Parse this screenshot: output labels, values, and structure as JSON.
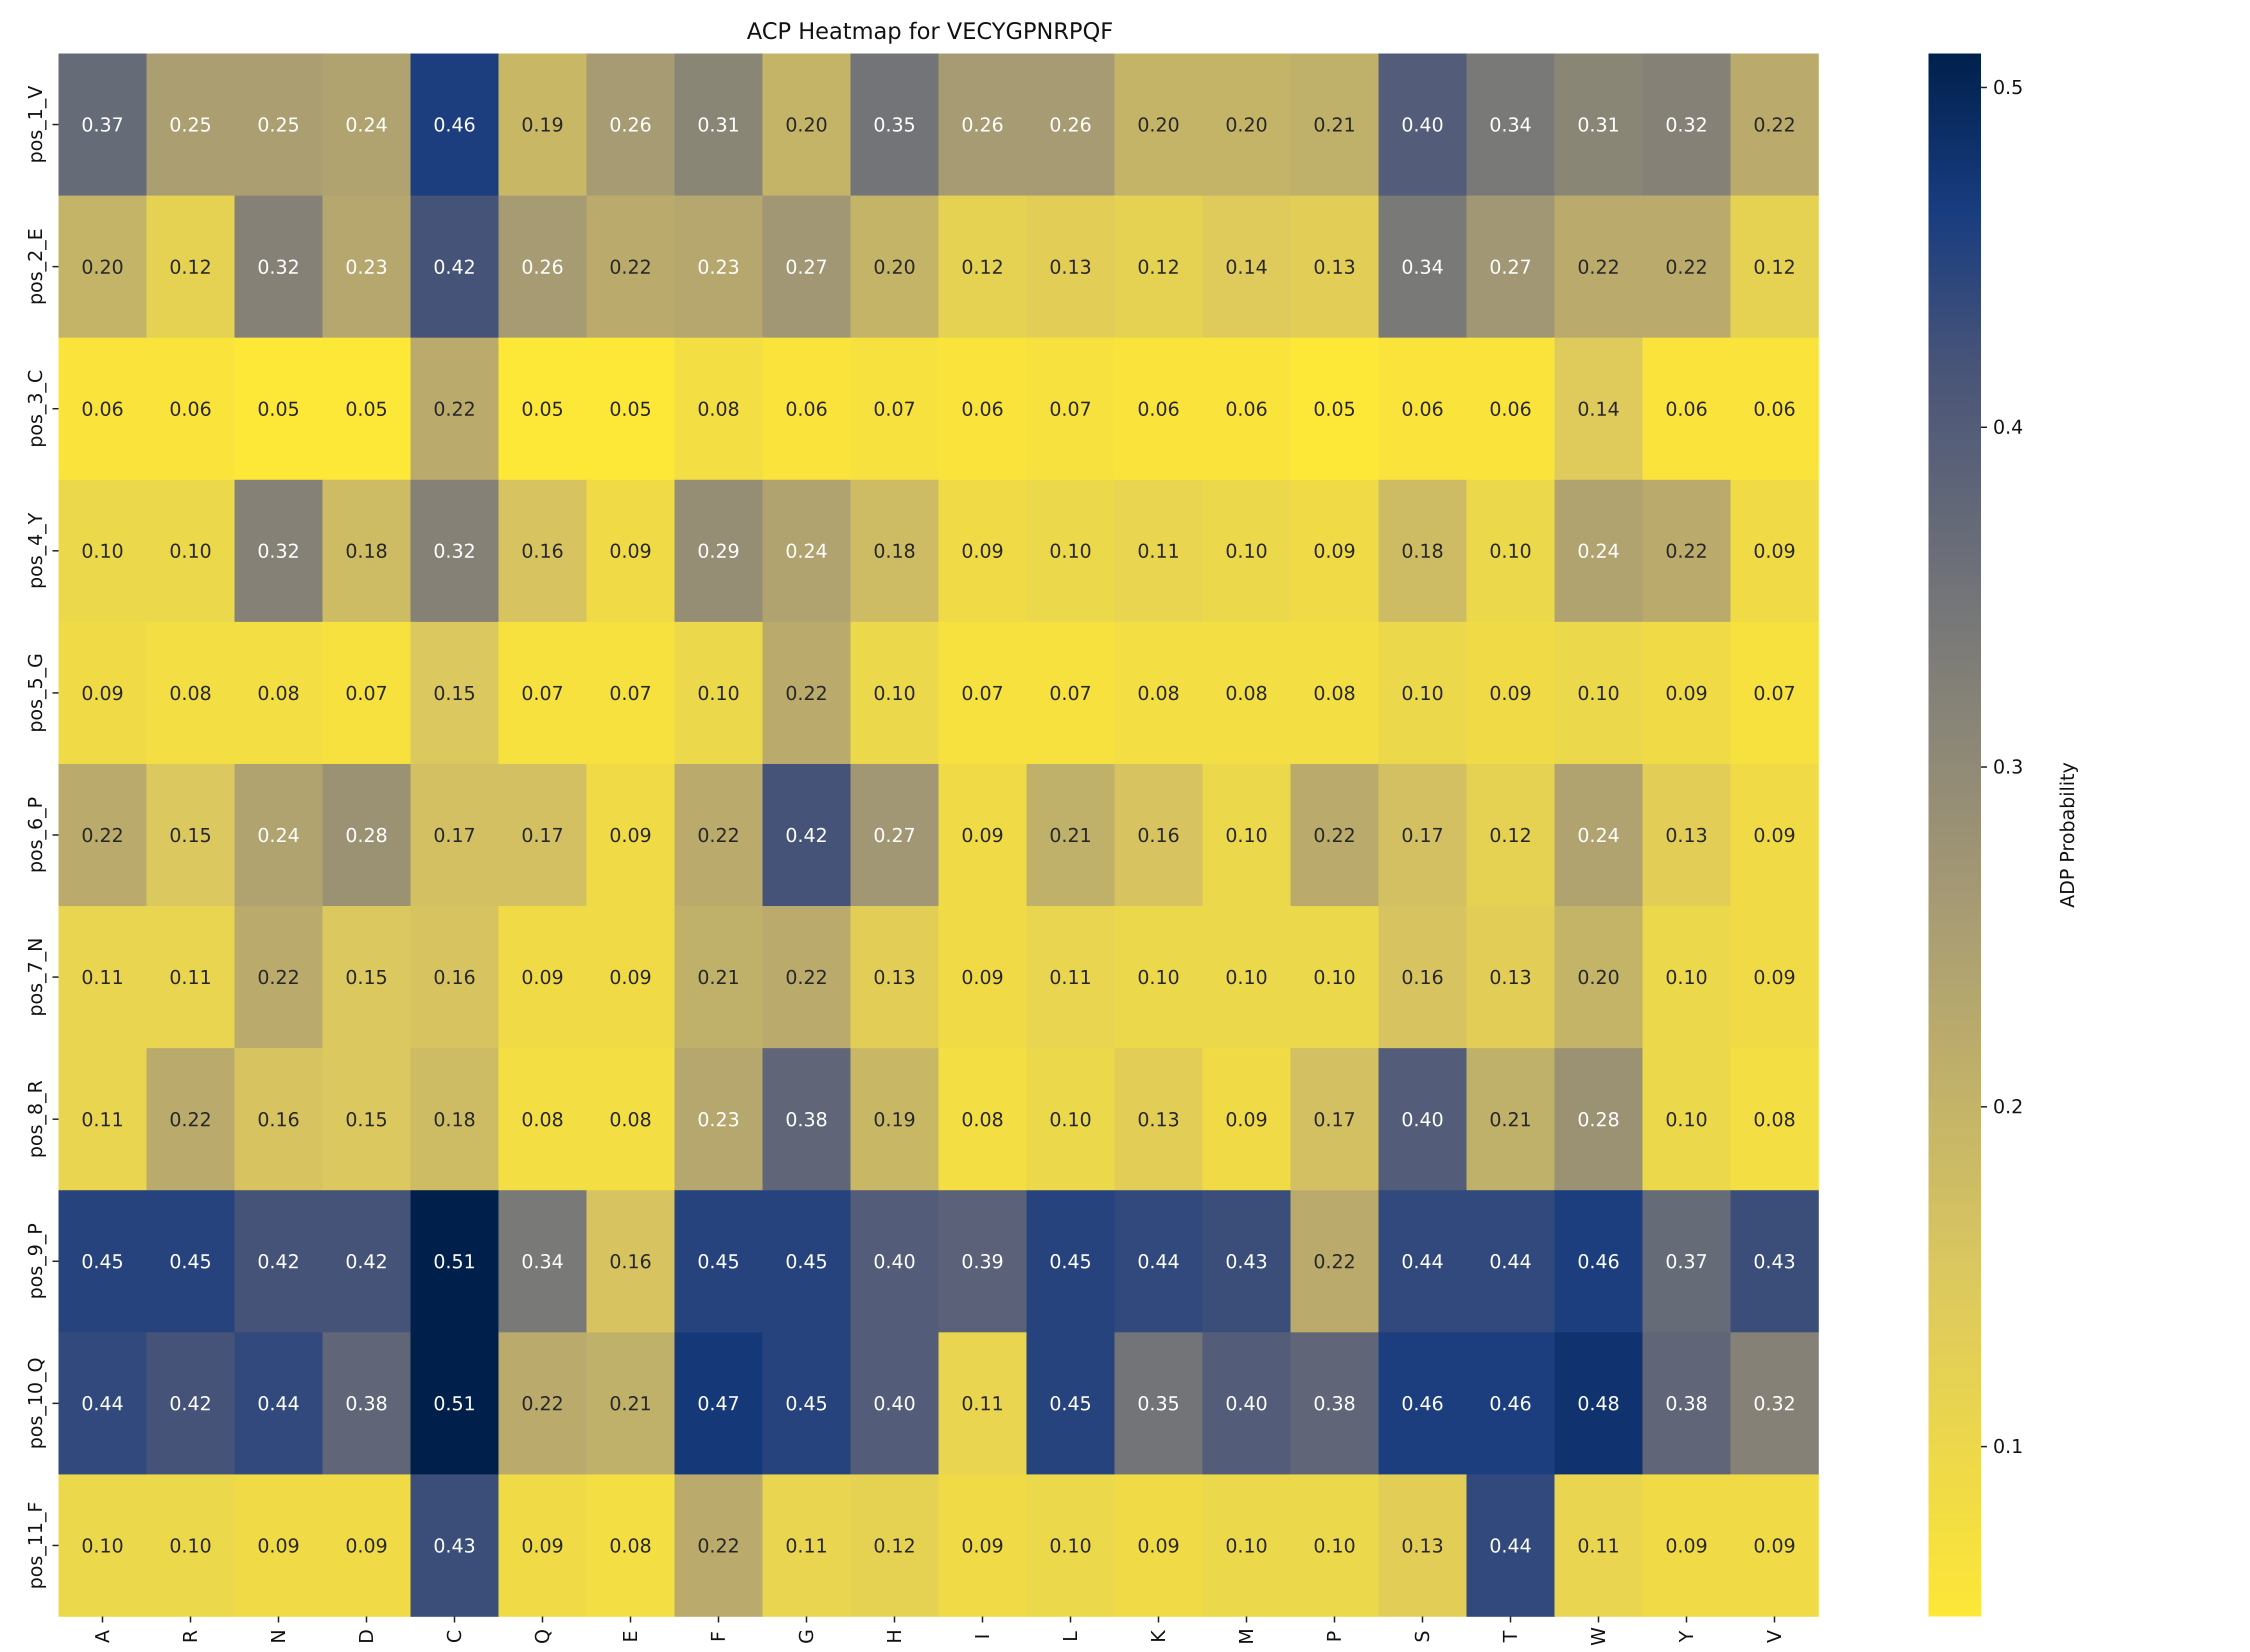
{
  "chart_data": {
    "type": "heatmap",
    "title": "ACP Heatmap for VECYGPNRPQF",
    "xlabel": "",
    "ylabel": "",
    "x_categories": [
      "A",
      "R",
      "N",
      "D",
      "C",
      "Q",
      "E",
      "F",
      "G",
      "H",
      "I",
      "L",
      "K",
      "M",
      "P",
      "S",
      "T",
      "W",
      "Y",
      "V"
    ],
    "y_categories": [
      "pos_1_V",
      "pos_2_E",
      "pos_3_C",
      "pos_4_Y",
      "pos_5_G",
      "pos_6_P",
      "pos_7_N",
      "pos_8_R",
      "pos_9_P",
      "pos_10_Q",
      "pos_11_F"
    ],
    "values": [
      [
        0.37,
        0.25,
        0.25,
        0.24,
        0.46,
        0.19,
        0.26,
        0.31,
        0.2,
        0.35,
        0.26,
        0.26,
        0.2,
        0.2,
        0.21,
        0.4,
        0.34,
        0.31,
        0.32,
        0.22
      ],
      [
        0.2,
        0.12,
        0.32,
        0.23,
        0.42,
        0.26,
        0.22,
        0.23,
        0.27,
        0.2,
        0.12,
        0.13,
        0.12,
        0.14,
        0.13,
        0.34,
        0.27,
        0.22,
        0.22,
        0.12
      ],
      [
        0.06,
        0.06,
        0.05,
        0.05,
        0.22,
        0.05,
        0.05,
        0.08,
        0.06,
        0.07,
        0.06,
        0.07,
        0.06,
        0.06,
        0.05,
        0.06,
        0.06,
        0.14,
        0.06,
        0.06
      ],
      [
        0.1,
        0.1,
        0.32,
        0.18,
        0.32,
        0.16,
        0.09,
        0.29,
        0.24,
        0.18,
        0.09,
        0.1,
        0.11,
        0.1,
        0.09,
        0.18,
        0.1,
        0.24,
        0.22,
        0.09
      ],
      [
        0.09,
        0.08,
        0.08,
        0.07,
        0.15,
        0.07,
        0.07,
        0.1,
        0.22,
        0.1,
        0.07,
        0.07,
        0.08,
        0.08,
        0.08,
        0.1,
        0.09,
        0.1,
        0.09,
        0.07
      ],
      [
        0.22,
        0.15,
        0.24,
        0.28,
        0.17,
        0.17,
        0.09,
        0.22,
        0.42,
        0.27,
        0.09,
        0.21,
        0.16,
        0.1,
        0.22,
        0.17,
        0.12,
        0.24,
        0.13,
        0.09
      ],
      [
        0.11,
        0.11,
        0.22,
        0.15,
        0.16,
        0.09,
        0.09,
        0.21,
        0.22,
        0.13,
        0.09,
        0.11,
        0.1,
        0.1,
        0.1,
        0.16,
        0.13,
        0.2,
        0.1,
        0.09
      ],
      [
        0.11,
        0.22,
        0.16,
        0.15,
        0.18,
        0.08,
        0.08,
        0.23,
        0.38,
        0.19,
        0.08,
        0.1,
        0.13,
        0.09,
        0.17,
        0.4,
        0.21,
        0.28,
        0.1,
        0.08
      ],
      [
        0.45,
        0.45,
        0.42,
        0.42,
        0.51,
        0.34,
        0.16,
        0.45,
        0.45,
        0.4,
        0.39,
        0.45,
        0.44,
        0.43,
        0.22,
        0.44,
        0.44,
        0.46,
        0.37,
        0.43
      ],
      [
        0.44,
        0.42,
        0.44,
        0.38,
        0.51,
        0.22,
        0.21,
        0.47,
        0.45,
        0.4,
        0.11,
        0.45,
        0.35,
        0.4,
        0.38,
        0.46,
        0.46,
        0.48,
        0.38,
        0.32
      ],
      [
        0.1,
        0.1,
        0.09,
        0.09,
        0.43,
        0.09,
        0.08,
        0.22,
        0.11,
        0.12,
        0.09,
        0.1,
        0.09,
        0.1,
        0.1,
        0.13,
        0.44,
        0.11,
        0.09,
        0.09
      ]
    ],
    "colormap": "cividis_r",
    "colorbar": {
      "label": "ADP Probability",
      "range": [
        0.05,
        0.51
      ],
      "ticks": [
        0.1,
        0.2,
        0.3,
        0.4,
        0.5
      ],
      "tick_labels": [
        "0.1",
        "0.2",
        "0.3",
        "0.4",
        "0.5"
      ]
    },
    "annotations": "cell values shown with 2 decimals",
    "grid": false,
    "legend": "colorbar-right"
  }
}
